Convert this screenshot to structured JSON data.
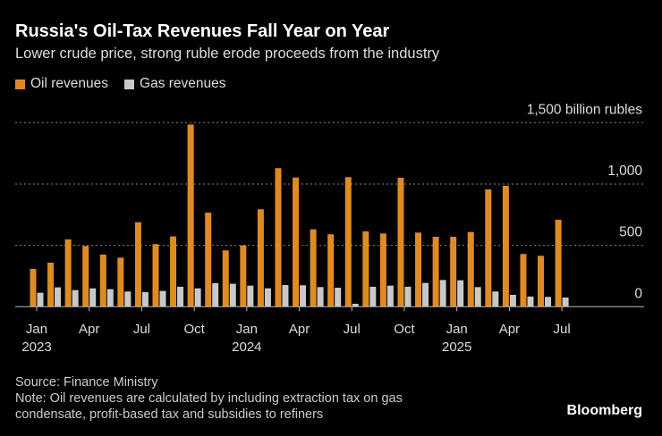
{
  "title": "Russia's Oil-Tax Revenues Fall Year on Year",
  "subtitle": "Lower crude price, strong ruble erode proceeds from the industry",
  "source": "Source: Finance Ministry",
  "note_line1": "Note: Oil revenues are calculated by including extraction tax on gas",
  "note_line2": "condensate, profit-based tax and subsidies to refiners",
  "logo": "Bloomberg",
  "colors": {
    "oil": "#E08A26",
    "gas": "#C8C8C8",
    "grid": "#888888"
  },
  "chart_data": {
    "type": "bar",
    "ylim": [
      0,
      1500
    ],
    "yticks": [
      0,
      500,
      1000,
      1500
    ],
    "ytick_labels": [
      "0",
      "500",
      "1,000",
      "1,500 billion rubles"
    ],
    "grid": true,
    "legend": "top-left",
    "categories": [
      "Jan 2023",
      "Feb 2023",
      "Mar 2023",
      "Apr 2023",
      "May 2023",
      "Jun 2023",
      "Jul 2023",
      "Aug 2023",
      "Sep 2023",
      "Oct 2023",
      "Nov 2023",
      "Dec 2023",
      "Jan 2024",
      "Feb 2024",
      "Mar 2024",
      "Apr 2024",
      "May 2024",
      "Jun 2024",
      "Jul 2024",
      "Aug 2024",
      "Sep 2024",
      "Oct 2024",
      "Nov 2024",
      "Dec 2024",
      "Jan 2025",
      "Feb 2025",
      "Mar 2025",
      "Apr 2025",
      "May 2025",
      "Jun 2025",
      "Jul 2025"
    ],
    "xtick_labels": [
      {
        "index": 0,
        "month": "Jan",
        "year": "2023"
      },
      {
        "index": 3,
        "month": "Apr",
        "year": ""
      },
      {
        "index": 6,
        "month": "Jul",
        "year": ""
      },
      {
        "index": 9,
        "month": "Oct",
        "year": ""
      },
      {
        "index": 12,
        "month": "Jan",
        "year": "2024"
      },
      {
        "index": 15,
        "month": "Apr",
        "year": ""
      },
      {
        "index": 18,
        "month": "Jul",
        "year": ""
      },
      {
        "index": 21,
        "month": "Oct",
        "year": ""
      },
      {
        "index": 24,
        "month": "Jan",
        "year": "2025"
      },
      {
        "index": 27,
        "month": "Apr",
        "year": ""
      },
      {
        "index": 30,
        "month": "Jul",
        "year": ""
      }
    ],
    "series": [
      {
        "name": "Oil revenues",
        "values": [
          308,
          359,
          549,
          495,
          425,
          400,
          689,
          510,
          573,
          1485,
          767,
          459,
          500,
          794,
          1129,
          1053,
          631,
          590,
          1056,
          614,
          597,
          1051,
          604,
          570,
          570,
          609,
          956,
          985,
          430,
          415,
          709
        ]
      },
      {
        "name": "Gas revenues",
        "values": [
          114,
          158,
          136,
          150,
          143,
          124,
          119,
          129,
          163,
          150,
          192,
          187,
          172,
          150,
          177,
          175,
          160,
          155,
          24,
          163,
          172,
          163,
          194,
          218,
          216,
          160,
          124,
          97,
          83,
          80,
          75
        ]
      }
    ]
  }
}
